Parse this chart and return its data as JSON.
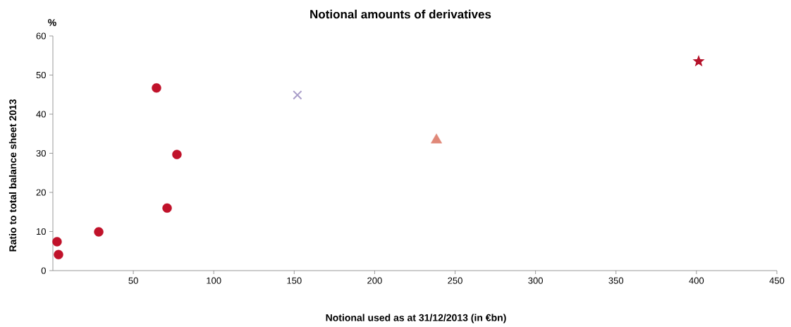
{
  "chart_data": {
    "type": "scatter",
    "title": "Notional amounts of derivatives",
    "xlabel": "Notional used as at 31/12/2013 (in €bn)",
    "ylabel": "Ratio to total balance sheet 2013",
    "annotations": [
      "%"
    ],
    "series": [
      {
        "color": "#c0122a",
        "marker": "circle",
        "x": [
          2.6,
          3.5,
          28.5,
          64.4,
          77.1,
          71.0
        ],
        "values": [
          7.4,
          4.1,
          9.9,
          46.7,
          29.7,
          16.0
        ]
      },
      {
        "color": "#a89cc8",
        "marker": "cross",
        "x": [
          152
        ],
        "values": [
          44.9
        ]
      },
      {
        "color": "#e08878",
        "marker": "triangle",
        "x": [
          238.4
        ],
        "values": [
          33.4
        ]
      },
      {
        "color": "#b5122a",
        "marker": "star",
        "x": [
          401.4
        ],
        "values": [
          53.5
        ]
      }
    ],
    "xlim": [
      0,
      450
    ],
    "ylim": [
      0,
      60
    ],
    "xticks": [
      50,
      100,
      150,
      200,
      250,
      300,
      350,
      400,
      450
    ],
    "yticks": [
      0,
      10,
      20,
      30,
      40,
      50,
      60
    ],
    "grid": false
  }
}
